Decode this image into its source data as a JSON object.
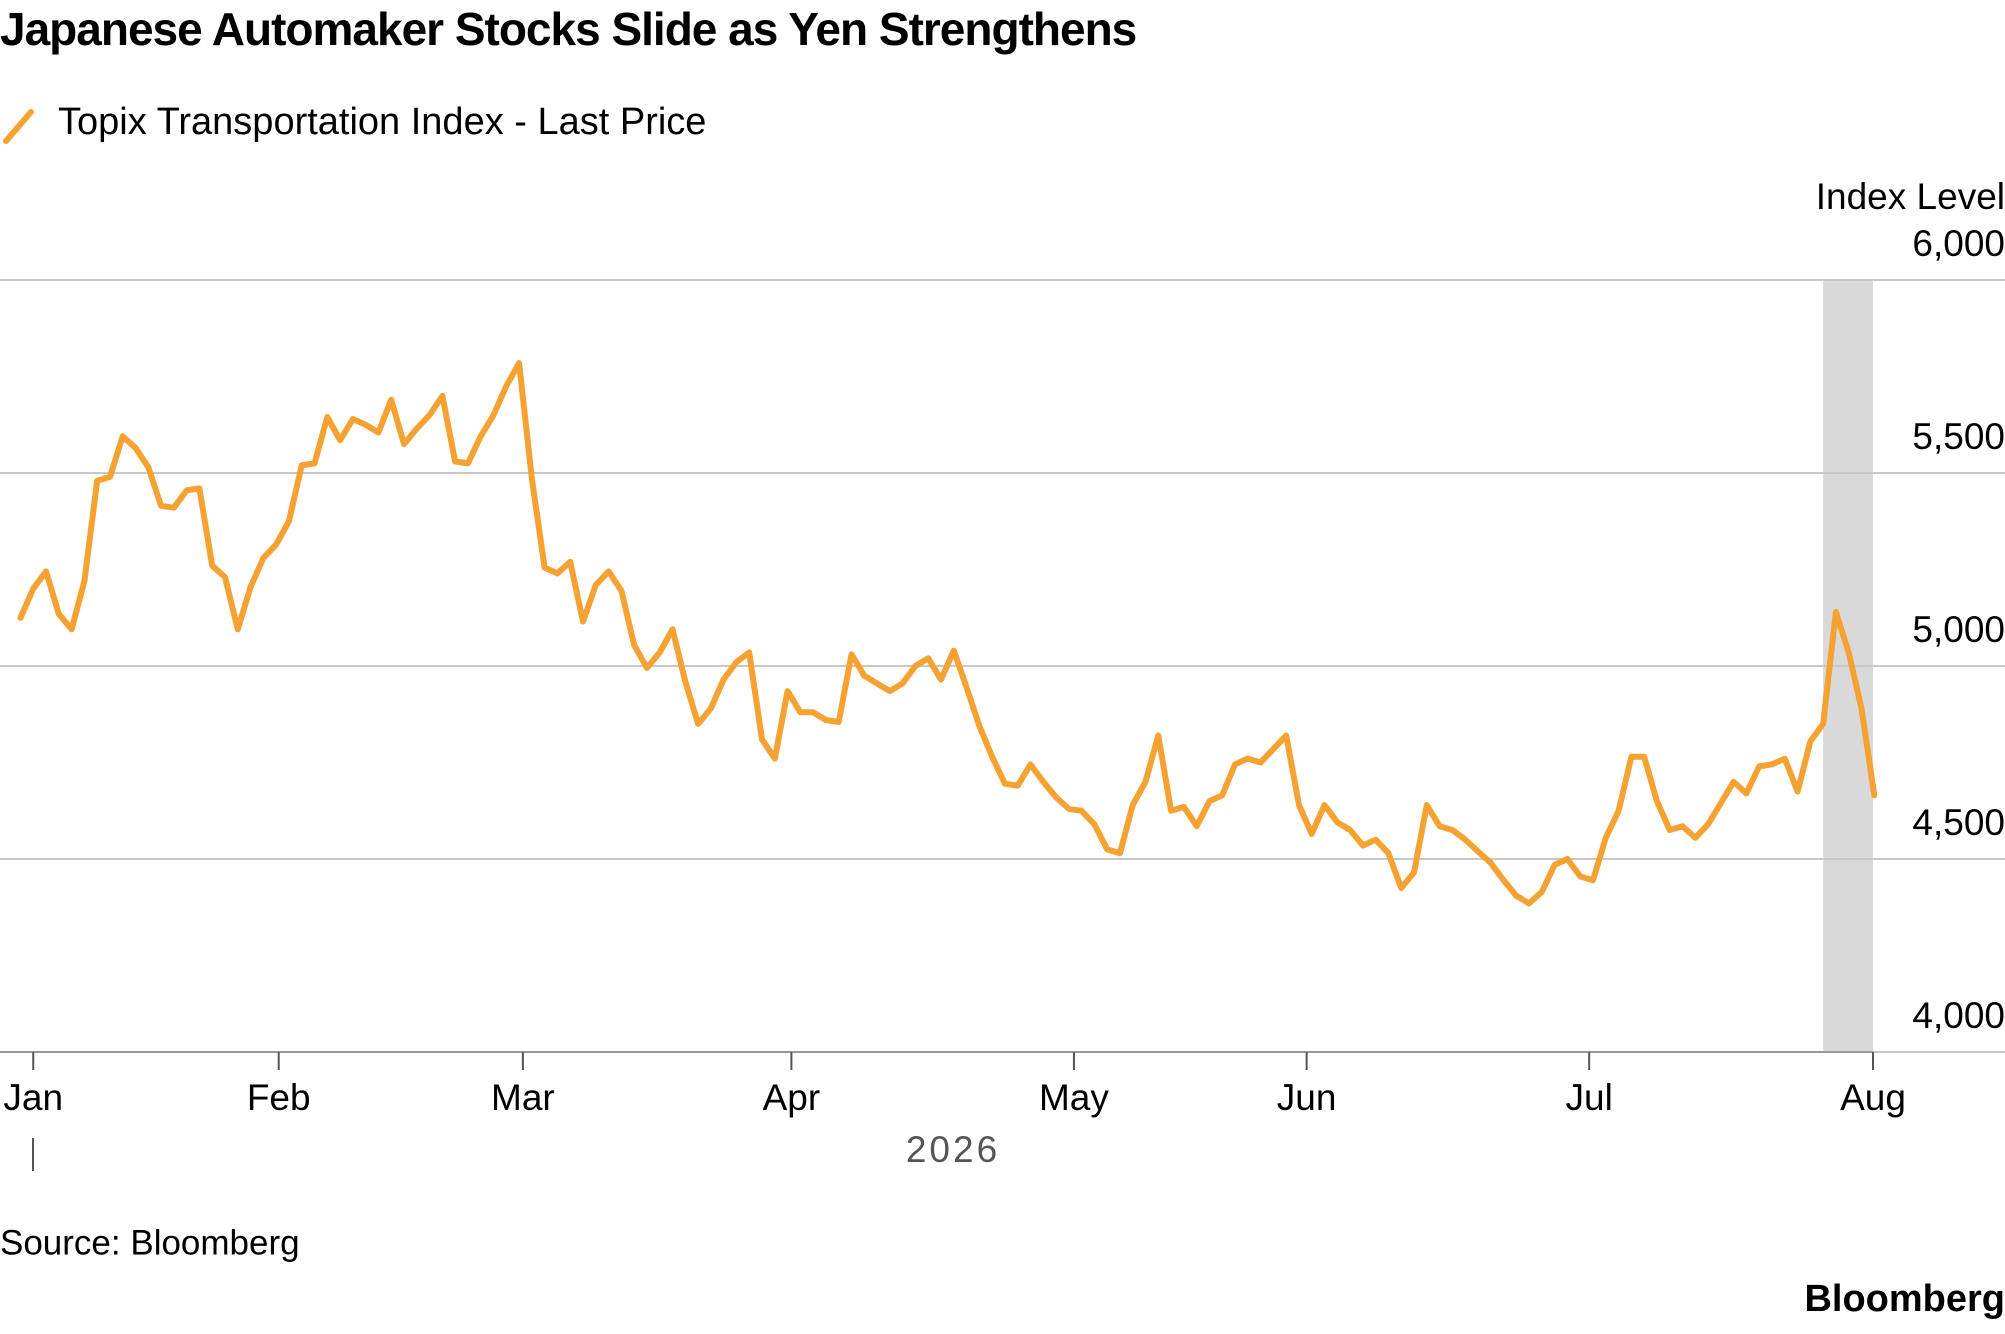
{
  "chart_data": {
    "type": "line",
    "title": "Japanese Automaker Stocks Slide as Yen Strengthens",
    "y_label": "Index Level",
    "x_label": "2026",
    "source": "Source: Bloomberg",
    "brand": "Bloomberg",
    "series": [
      {
        "name": "Topix Transportation Index - Last Price",
        "color": "#f5a232",
        "values": [
          5125,
          5200,
          5245,
          5135,
          5095,
          5220,
          5480,
          5490,
          5595,
          5565,
          5515,
          5415,
          5410,
          5455,
          5460,
          5260,
          5230,
          5095,
          5205,
          5280,
          5315,
          5375,
          5520,
          5525,
          5645,
          5585,
          5640,
          5625,
          5605,
          5690,
          5575,
          5615,
          5650,
          5700,
          5530,
          5525,
          5595,
          5650,
          5725,
          5785,
          5485,
          5255,
          5240,
          5270,
          5115,
          5210,
          5245,
          5195,
          5055,
          4995,
          5035,
          5095,
          4960,
          4850,
          4890,
          4965,
          5010,
          5035,
          4810,
          4760,
          4935,
          4880,
          4880,
          4860,
          4855,
          5030,
          4975,
          4955,
          4935,
          4955,
          5000,
          5020,
          4965,
          5040,
          4945,
          4845,
          4765,
          4695,
          4690,
          4745,
          4700,
          4660,
          4630,
          4625,
          4590,
          4525,
          4515,
          4640,
          4700,
          4820,
          4625,
          4635,
          4585,
          4650,
          4665,
          4745,
          4760,
          4750,
          4785,
          4820,
          4640,
          4565,
          4640,
          4595,
          4575,
          4535,
          4550,
          4515,
          4425,
          4465,
          4640,
          4585,
          4575,
          4550,
          4520,
          4490,
          4445,
          4405,
          4385,
          4415,
          4485,
          4500,
          4455,
          4445,
          4555,
          4625,
          4765,
          4765,
          4650,
          4575,
          4585,
          4555,
          4590,
          4645,
          4700,
          4670,
          4740,
          4745,
          4760,
          4675,
          4805,
          4850,
          5140,
          5035,
          4890,
          4665
        ]
      }
    ],
    "xlim": [
      -1.6,
      144.9
    ],
    "xticks": [
      {
        "value": 1,
        "label": "Jan"
      },
      {
        "value": 20.2,
        "label": "Feb"
      },
      {
        "value": 39.3,
        "label": "Mar"
      },
      {
        "value": 60.3,
        "label": "Apr"
      },
      {
        "value": 82.4,
        "label": "May"
      },
      {
        "value": 100.6,
        "label": "Jun"
      },
      {
        "value": 122.7,
        "label": "Jul"
      },
      {
        "value": 144.9,
        "label": "Aug"
      }
    ],
    "ylim": [
      4000,
      6000
    ],
    "yticks": [
      {
        "value": 4000,
        "label": "4,000"
      },
      {
        "value": 4500,
        "label": "4,500"
      },
      {
        "value": 5000,
        "label": "5,000"
      },
      {
        "value": 5500,
        "label": "5,500"
      },
      {
        "value": 6000,
        "label": "6,000"
      }
    ],
    "grid": true,
    "shaded_range": [
      141,
      144.9
    ],
    "shaded_color": "#d9d9d9"
  }
}
